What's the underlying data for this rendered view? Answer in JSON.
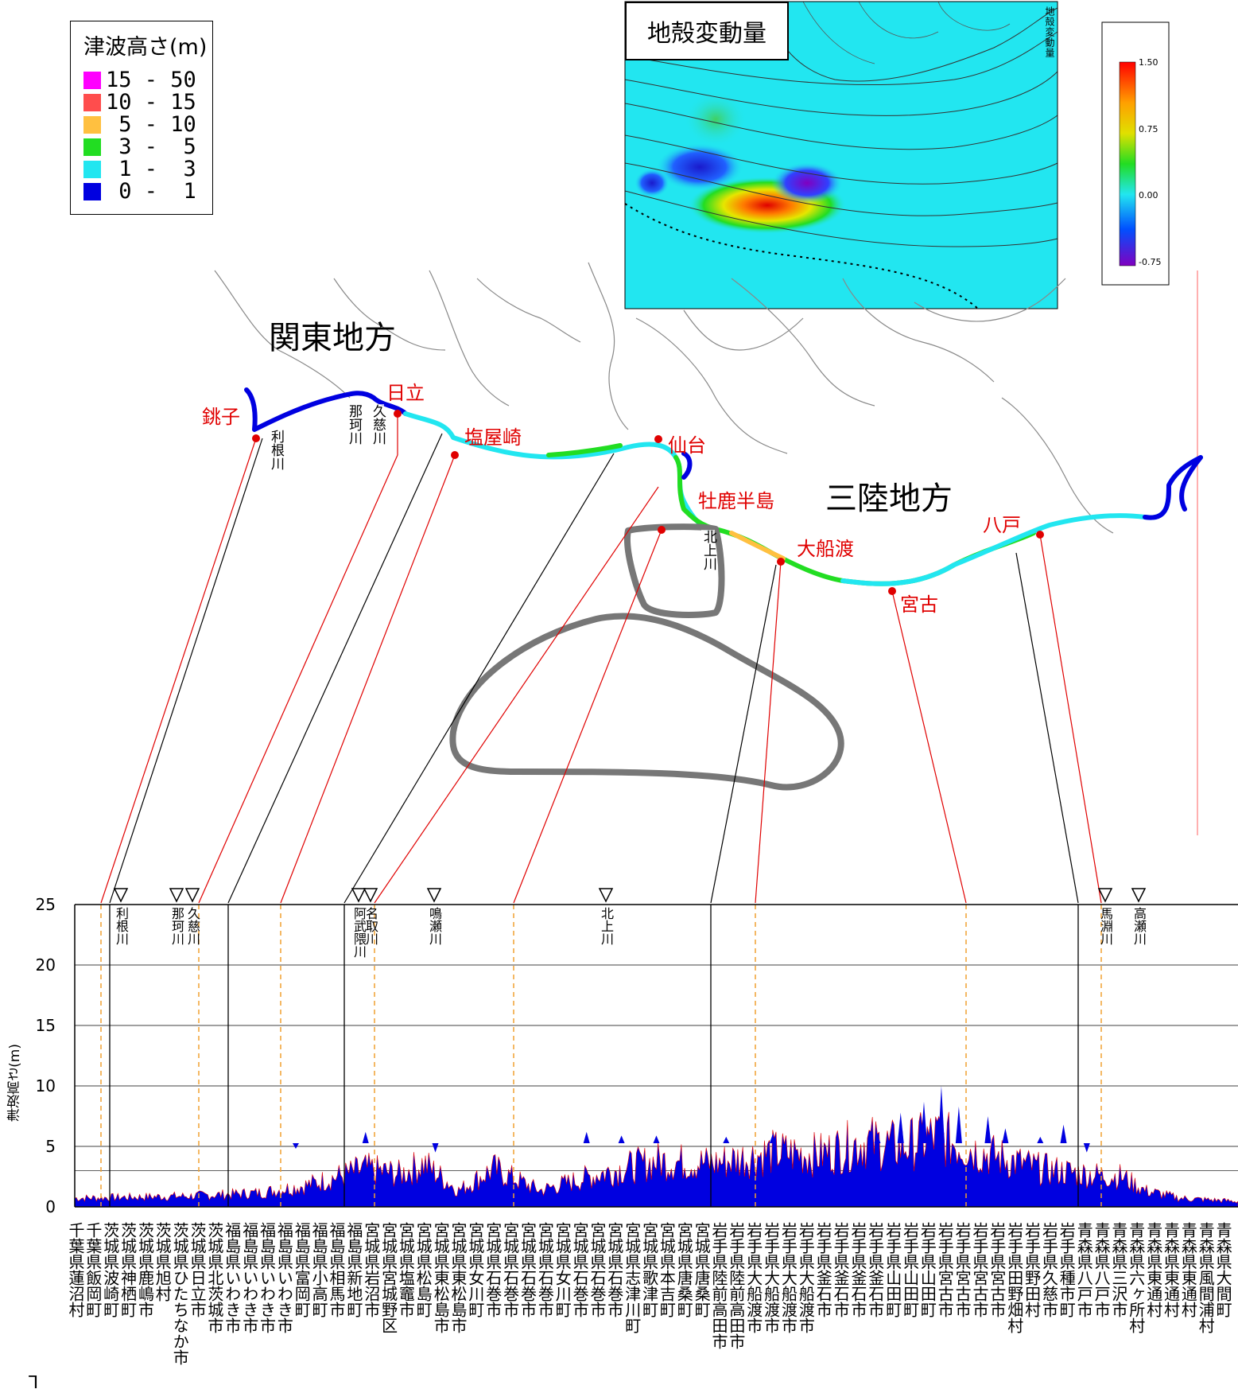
{
  "legend": {
    "title": "津波高さ(m)",
    "items": [
      {
        "label": "15 - 50",
        "color": "#ff00ff"
      },
      {
        "label": "10 - 15",
        "color": "#ff4d4d"
      },
      {
        "label": " 5 - 10",
        "color": "#ffc040"
      },
      {
        "label": " 3 -  5",
        "color": "#22dd22"
      },
      {
        "label": " 1 -  3",
        "color": "#22e6f0"
      },
      {
        "label": " 0 -  1",
        "color": "#0000e0"
      }
    ]
  },
  "inset": {
    "title": "地殻変動量",
    "side_label": "地殻変動量",
    "colorbar_ticks": [
      "1.50",
      "0.75",
      "0.00",
      "-0.75"
    ]
  },
  "map": {
    "regions": {
      "kanto": "関東地方",
      "sanriku": "三陸地方"
    },
    "places": [
      "銚子",
      "日立",
      "塩屋崎",
      "仙台",
      "牡鹿半島",
      "大船渡",
      "宮古",
      "八戸"
    ],
    "rivers": [
      "利根川",
      "那珂川",
      "久慈川",
      "北上川"
    ]
  },
  "chart_data": {
    "type": "area",
    "ylabel": "津波高さ(m)",
    "yticks": [
      0,
      5,
      10,
      15,
      20,
      25
    ],
    "ylim": [
      0,
      25
    ],
    "grid": true,
    "series_color": "#0000e0",
    "rivers": [
      {
        "name": "利根川"
      },
      {
        "name": "那珂川"
      },
      {
        "name": "久慈川"
      },
      {
        "name": "阿武隈川"
      },
      {
        "name": "名取川"
      },
      {
        "name": "鳴瀬川"
      },
      {
        "name": "北上川"
      },
      {
        "name": "馬淵川"
      },
      {
        "name": "高瀬川"
      }
    ],
    "municipalities": [
      "千葉県蓮沼村",
      "千葉県飯岡町",
      "茨城県波崎町",
      "茨城県神栖町",
      "茨城県鹿嶋市",
      "茨城県旭村",
      "茨城県ひたちなか市",
      "茨城県日立市",
      "茨城県北茨城市",
      "福島県いわき市",
      "福島県いわき市",
      "福島県いわき市",
      "福島県いわき市",
      "福島県富岡町",
      "福島県小高町",
      "福島県相馬市",
      "福島県新地町",
      "宮城県岩沼市",
      "宮城県宮城野区",
      "宮城県塩竈市",
      "宮城県松島町",
      "宮城県東松島市",
      "宮城県東松島市",
      "宮城県女川町",
      "宮城県石巻市",
      "宮城県石巻市",
      "宮城県石巻市",
      "宮城県石巻市",
      "宮城県女川町",
      "宮城県石巻市",
      "宮城県石巻市",
      "宮城県石巻市",
      "宮城県志津川町",
      "宮城県歌津町",
      "宮城県本吉町",
      "宮城県唐桑町",
      "宮城県唐桑町",
      "岩手県陸前高田市",
      "岩手県陸前高田市",
      "岩手県大船渡市",
      "岩手県大船渡市",
      "岩手県大船渡市",
      "岩手県大船渡市",
      "岩手県釜石市",
      "岩手県釜石市",
      "岩手県釜石市",
      "岩手県釜石市",
      "岩手県山田町",
      "岩手県山田町",
      "岩手県山田町",
      "岩手県宮古市",
      "岩手県宮古市",
      "岩手県宮古市",
      "岩手県宮古市",
      "岩手県田野畑村",
      "岩手県野田村",
      "岩手県久慈市",
      "岩手県種市町",
      "青森県八戸市",
      "青森県八戸市",
      "青森県三沢市",
      "青森県六ヶ所村",
      "青森県東通村",
      "青森県東通村",
      "青森県東通村",
      "青森県風間浦村",
      "青森県大間町"
    ]
  }
}
